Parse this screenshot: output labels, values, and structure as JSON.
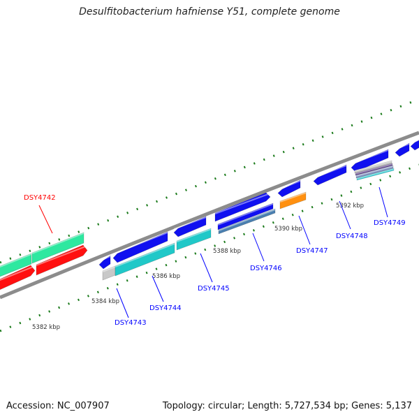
{
  "title": "Desulfitobacterium hafniense Y51, complete genome",
  "footer": {
    "accession": "Accession: NC_007907",
    "summary": "Topology: circular; Length: 5,727,534 bp; Genes: 5,137"
  },
  "colors": {
    "backbone": "#8c8c8c",
    "ticks": "#1a7a1a",
    "forward_label": "#ff0000",
    "gene_label": "#0000ff"
  },
  "scale_labels": [
    "5382 kbp",
    "5384 kbp",
    "5386 kbp",
    "5388 kbp",
    "5390 kbp",
    "5392 kbp"
  ],
  "genes": [
    {
      "label": "DSY4742",
      "color": "#ff0000"
    },
    {
      "label": "DSY4743",
      "color": "#0000ff"
    },
    {
      "label": "DSY4744",
      "color": "#0000ff"
    },
    {
      "label": "DSY4745",
      "color": "#0000ff"
    },
    {
      "label": "DSY4746",
      "color": "#0000ff"
    },
    {
      "label": "DSY4747",
      "color": "#0000ff"
    },
    {
      "label": "DSY4748",
      "color": "#0000ff"
    },
    {
      "label": "DSY4749",
      "color": "#0000ff"
    }
  ]
}
